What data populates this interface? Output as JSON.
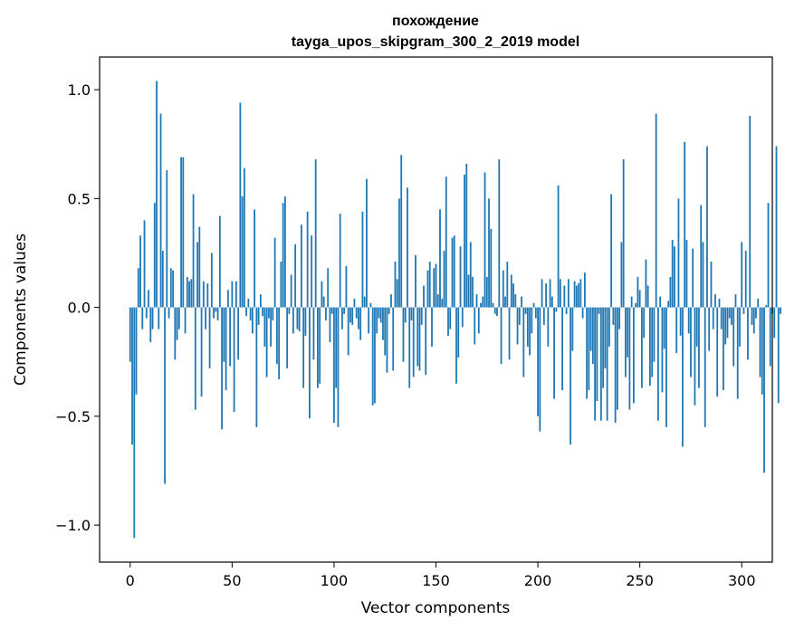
{
  "chart_data": {
    "type": "bar",
    "title": "похождение",
    "subtitle": "tayga_upos_skipgram_300_2_2019 model",
    "xlabel": "Vector components",
    "ylabel": "Components values",
    "xlim": [
      -15,
      315
    ],
    "ylim": [
      -1.17,
      1.15
    ],
    "xticks": [
      0,
      50,
      100,
      150,
      200,
      250,
      300
    ],
    "xtick_labels": [
      "0",
      "50",
      "100",
      "150",
      "200",
      "250",
      "300"
    ],
    "yticks": [
      -1.0,
      -0.5,
      0.0,
      0.5,
      1.0
    ],
    "ytick_labels": [
      "−1.0",
      "−0.5",
      "0.0",
      "0.5",
      "1.0"
    ],
    "grid": false,
    "bar_color": "#1f77b4",
    "values": [
      -0.25,
      -0.63,
      -1.06,
      -0.4,
      0.18,
      0.33,
      -0.1,
      0.4,
      -0.05,
      0.08,
      -0.16,
      -0.1,
      0.48,
      1.04,
      -0.1,
      0.89,
      0.26,
      -0.81,
      0.63,
      -0.05,
      0.18,
      0.17,
      -0.24,
      -0.15,
      -0.1,
      0.69,
      0.69,
      -0.12,
      0.14,
      0.12,
      0.13,
      0.52,
      -0.47,
      0.3,
      0.37,
      -0.41,
      0.12,
      -0.1,
      0.11,
      -0.28,
      0.25,
      -0.05,
      -0.02,
      -0.06,
      0.42,
      -0.56,
      -0.25,
      -0.38,
      0.08,
      -0.27,
      0.12,
      -0.48,
      0.12,
      -0.24,
      0.94,
      0.51,
      0.64,
      -0.04,
      0.04,
      -0.06,
      -0.12,
      0.45,
      -0.55,
      -0.08,
      0.06,
      -0.04,
      -0.18,
      -0.32,
      -0.05,
      -0.18,
      -0.06,
      0.32,
      -0.26,
      -0.33,
      0.21,
      0.48,
      0.51,
      -0.28,
      -0.03,
      0.15,
      -0.12,
      0.29,
      -0.1,
      -0.11,
      0.38,
      -0.37,
      -0.13,
      0.44,
      -0.51,
      0.33,
      -0.24,
      0.68,
      -0.37,
      -0.35,
      0.12,
      0.05,
      -0.06,
      0.18,
      -0.16,
      -0.03,
      -0.53,
      -0.37,
      -0.55,
      0.43,
      -0.1,
      -0.03,
      0.19,
      -0.22,
      -0.07,
      -0.08,
      0.04,
      -0.05,
      -0.1,
      -0.15,
      0.44,
      0.05,
      0.59,
      -0.12,
      0.02,
      -0.45,
      -0.44,
      -0.12,
      -0.05,
      -0.07,
      -0.15,
      -0.22,
      -0.3,
      -0.03,
      0.06,
      -0.29,
      0.21,
      0.13,
      0.5,
      0.7,
      -0.25,
      -0.07,
      0.55,
      -0.37,
      -0.06,
      -0.32,
      0.24,
      -0.27,
      -0.29,
      -0.08,
      0.1,
      -0.31,
      0.17,
      0.21,
      -0.18,
      0.18,
      0.2,
      0.06,
      0.45,
      0.04,
      0.26,
      0.6,
      -0.13,
      -0.1,
      0.32,
      0.33,
      -0.35,
      -0.23,
      0.28,
      -0.09,
      0.61,
      0.66,
      0.15,
      0.3,
      0.14,
      -0.17,
      0.06,
      -0.12,
      0.02,
      0.05,
      0.62,
      0.14,
      0.5,
      0.36,
      0.02,
      -0.03,
      -0.04,
      0.68,
      -0.26,
      0.17,
      0.05,
      0.21,
      -0.24,
      0.15,
      0.11,
      0.06,
      -0.17,
      -0.08,
      0.05,
      -0.32,
      -0.03,
      -0.18,
      -0.22,
      -0.12,
      0.02,
      -0.05,
      -0.5,
      -0.57,
      0.13,
      -0.08,
      0.11,
      -0.18,
      0.13,
      0.05,
      -0.42,
      -0.02,
      0.56,
      0.13,
      -0.38,
      0.1,
      -0.03,
      0.13,
      -0.63,
      -0.2,
      0.12,
      0.1,
      0.11,
      0.13,
      -0.05,
      0.16,
      -0.42,
      -0.38,
      -0.2,
      -0.26,
      -0.52,
      -0.43,
      -0.03,
      -0.52,
      -0.37,
      -0.28,
      -0.52,
      -0.18,
      0.52,
      -0.08,
      -0.53,
      -0.47,
      -0.1,
      0.3,
      0.68,
      -0.32,
      -0.23,
      -0.47,
      0.05,
      -0.44,
      0.02,
      0.14,
      0.08,
      -0.37,
      -0.14,
      0.22,
      0.1,
      -0.36,
      -0.32,
      -0.25,
      0.89,
      -0.52,
      0.05,
      -0.39,
      -0.19,
      -0.55,
      0.03,
      0.14,
      0.31,
      0.28,
      -0.21,
      0.5,
      -0.13,
      -0.64,
      0.76,
      0.31,
      -0.12,
      -0.32,
      0.27,
      -0.45,
      -0.18,
      -0.37,
      0.47,
      0.3,
      -0.55,
      0.74,
      -0.2,
      0.21,
      -0.1,
      0.06,
      -0.41,
      0.04,
      -0.1,
      -0.38,
      -0.17,
      -0.14,
      -0.05,
      -0.08,
      -0.27,
      0.06,
      -0.42,
      -0.18,
      0.3,
      -0.03,
      0.26,
      -0.24,
      0.88,
      -0.08,
      -0.12,
      -0.05,
      0.04,
      -0.32,
      -0.4,
      -0.76,
      0.01,
      0.48,
      -0.27,
      -0.03,
      -0.14,
      0.74,
      -0.44,
      -0.03
    ]
  }
}
